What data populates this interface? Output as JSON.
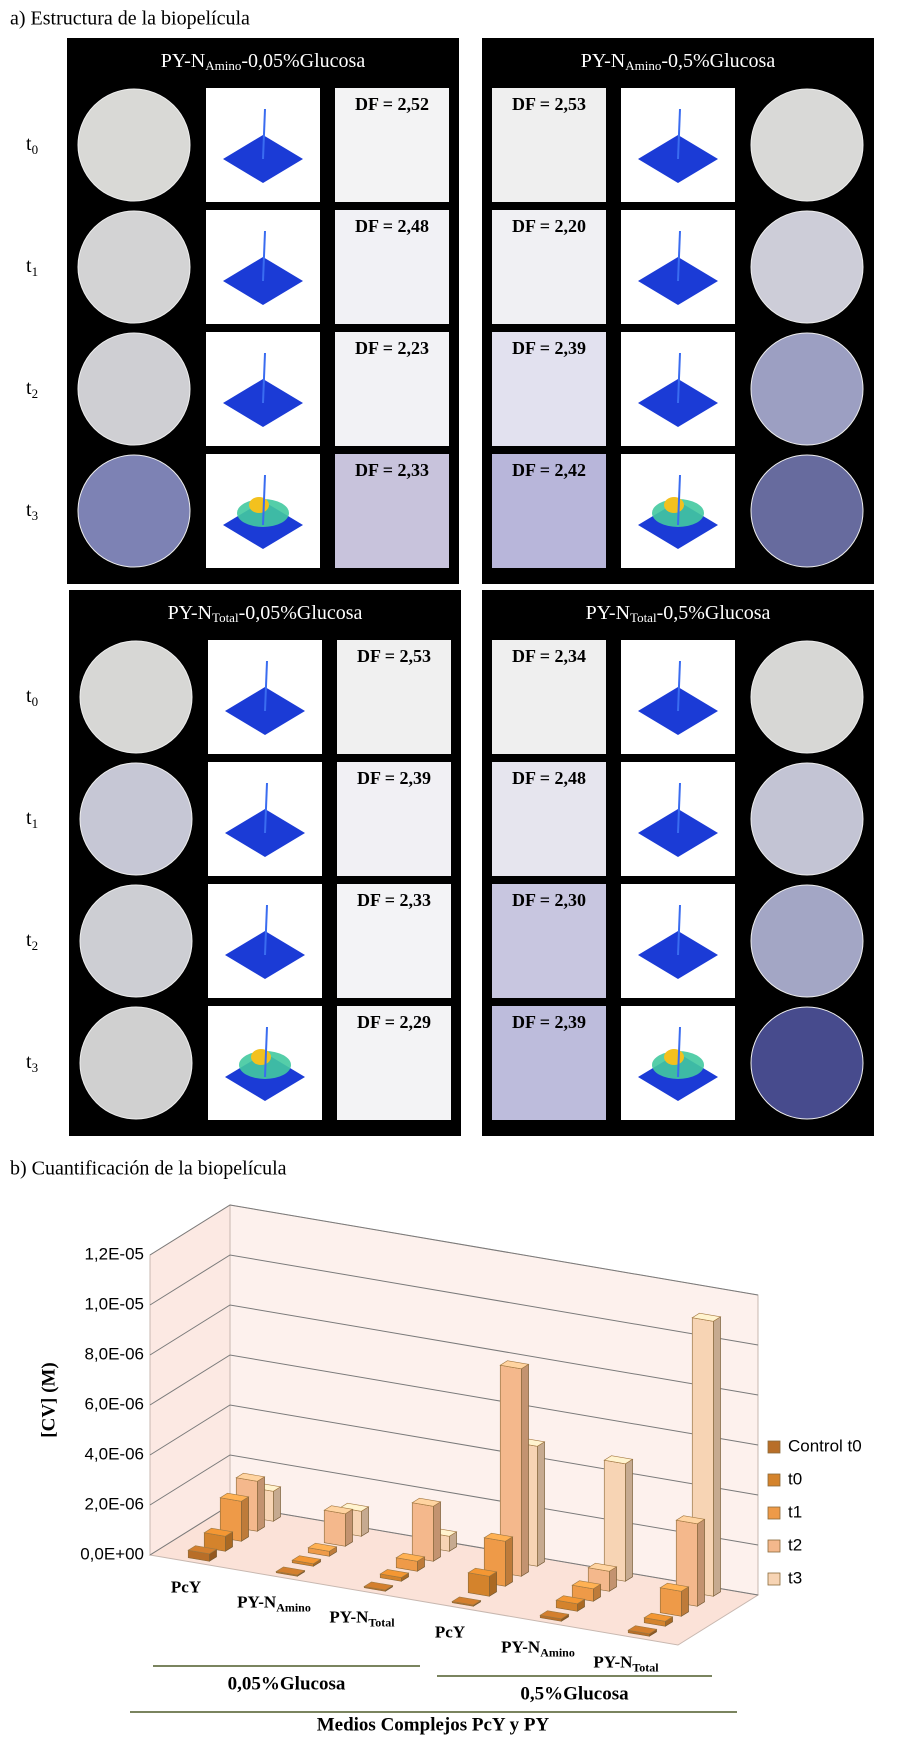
{
  "figure_a": {
    "label": "a) Estructura de la biopelícula",
    "row_labels": [
      {
        "main": "t",
        "sub": "0"
      },
      {
        "main": "t",
        "sub": "1"
      },
      {
        "main": "t",
        "sub": "2"
      },
      {
        "main": "t",
        "sub": "3"
      }
    ],
    "panels": [
      {
        "title": {
          "prefix": "PY-N",
          "sub": "Amino",
          "suffix": "-0,05%Glucosa"
        },
        "df": [
          "DF = 2,52",
          "DF = 2,48",
          "DF = 2,23",
          "DF = 2,33"
        ]
      },
      {
        "title": {
          "prefix": "PY-N",
          "sub": "Amino",
          "suffix": "-0,5%Glucosa"
        },
        "df": [
          "DF = 2,53",
          "DF = 2,20",
          "DF = 2,39",
          "DF = 2,42"
        ]
      },
      {
        "title": {
          "prefix": "PY-N",
          "sub": "Total",
          "suffix": "-0,05%Glucosa"
        },
        "df": [
          "DF = 2,53",
          "DF = 2,39",
          "DF = 2,33",
          "DF = 2,29"
        ]
      },
      {
        "title": {
          "prefix": "PY-N",
          "sub": "Total",
          "suffix": "-0,5%Glucosa"
        },
        "df": [
          "DF = 2,34",
          "DF = 2,48",
          "DF = 2,30",
          "DF = 2,39"
        ]
      }
    ]
  },
  "chart_data": {
    "type": "bar",
    "title": "b) Cuantificación de la biopelícula",
    "ylabel": "[CV] (M)",
    "xlabel": "Medios Complejos PcY y PY",
    "categories": [
      "PcY",
      "PY-N",
      "PY-N",
      "PcY",
      "PY-N",
      "PY-N"
    ],
    "category_subscripts": [
      null,
      "Amino",
      "Total",
      null,
      "Amino",
      "Total"
    ],
    "groups": [
      "0,05%Glucosa",
      "0,5%Glucosa"
    ],
    "series": [
      {
        "name": "Control t0",
        "color": "#b86e28",
        "values": [
          3e-07,
          5e-08,
          5e-08,
          5e-08,
          1e-07,
          1e-07
        ]
      },
      {
        "name": "t0",
        "color": "#d4832c",
        "values": [
          6e-07,
          1e-07,
          1.5e-07,
          8e-07,
          3e-07,
          2e-07
        ]
      },
      {
        "name": "t1",
        "color": "#ee9a48",
        "values": [
          1.6e-06,
          2e-07,
          4e-07,
          1.8e-06,
          5e-07,
          1e-06
        ]
      },
      {
        "name": "t2",
        "color": "#f4b88c",
        "values": [
          2e-06,
          1.3e-06,
          2.2e-06,
          8.3e-06,
          8e-07,
          3.3e-06
        ]
      },
      {
        "name": "t3",
        "color": "#f7d4b4",
        "values": [
          1.2e-06,
          1e-06,
          6e-07,
          4.8e-06,
          4.7e-06,
          1.1e-05
        ]
      }
    ],
    "ylim": [
      0,
      1.2e-05
    ],
    "yticks": [
      {
        "value": 0,
        "label": "0,0E+00"
      },
      {
        "value": 2e-06,
        "label": "2,0E-06"
      },
      {
        "value": 4e-06,
        "label": "4,0E-06"
      },
      {
        "value": 6e-06,
        "label": "6,0E-06"
      },
      {
        "value": 8e-06,
        "label": "8,0E-06"
      },
      {
        "value": 1e-05,
        "label": "1,0E-05"
      },
      {
        "value": 1.2e-05,
        "label": "1,2E-05"
      }
    ],
    "grid": true
  }
}
